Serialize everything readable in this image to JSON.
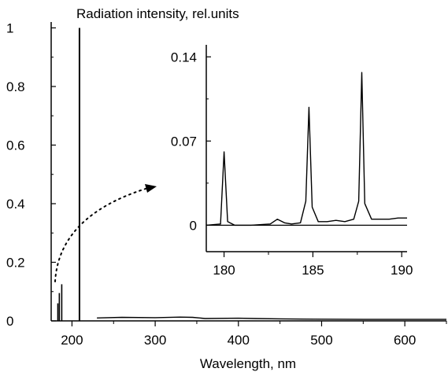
{
  "chart_data": [
    {
      "type": "line",
      "title": "Radiation intensity, rel.units",
      "xlabel": "Wavelength, nm",
      "ylabel": "",
      "xlim": [
        175,
        650
      ],
      "ylim": [
        0,
        1.02
      ],
      "xticks": [
        200,
        300,
        400,
        500,
        600
      ],
      "yticks": [
        0,
        0.2,
        0.4,
        0.6,
        0.8,
        1
      ],
      "series": [
        {
          "values": [
            [
              183,
              0.06
            ],
            [
              184.8,
              0.095
            ],
            [
              187.7,
              0.125
            ],
            [
              209,
              1.0
            ],
            [
              230,
              0.01
            ],
            [
              260,
              0.012
            ],
            [
              300,
              0.011
            ],
            [
              330,
              0.013
            ],
            [
              345,
              0.012
            ],
            [
              360,
              0.008
            ],
            [
              400,
              0.009
            ],
            [
              420,
              0.008
            ],
            [
              450,
              0.007
            ],
            [
              490,
              0.006
            ],
            [
              550,
              0.005
            ],
            [
              600,
              0.005
            ],
            [
              650,
              0.005
            ]
          ]
        }
      ],
      "grid": false
    },
    {
      "type": "line",
      "inset": true,
      "xlim": [
        179,
        190.3
      ],
      "ylim": [
        -0.022,
        0.15
      ],
      "xticks": [
        180,
        185,
        190
      ],
      "yticks": [
        0,
        0.07,
        0.14
      ],
      "series": [
        {
          "values": [
            [
              179.0,
              0.0
            ],
            [
              179.8,
              0.001
            ],
            [
              180.0,
              0.061
            ],
            [
              180.2,
              0.003
            ],
            [
              180.6,
              0.0
            ],
            [
              181.5,
              0.0
            ],
            [
              182.6,
              0.001
            ],
            [
              183.0,
              0.005
            ],
            [
              183.4,
              0.002
            ],
            [
              183.8,
              0.001
            ],
            [
              184.3,
              0.002
            ],
            [
              184.6,
              0.02
            ],
            [
              184.78,
              0.098
            ],
            [
              184.96,
              0.015
            ],
            [
              185.3,
              0.003
            ],
            [
              185.8,
              0.003
            ],
            [
              186.3,
              0.004
            ],
            [
              186.8,
              0.003
            ],
            [
              187.3,
              0.005
            ],
            [
              187.58,
              0.02
            ],
            [
              187.75,
              0.127
            ],
            [
              187.92,
              0.018
            ],
            [
              188.3,
              0.005
            ],
            [
              188.8,
              0.005
            ],
            [
              189.3,
              0.005
            ],
            [
              189.8,
              0.006
            ],
            [
              190.3,
              0.006
            ]
          ]
        }
      ],
      "grid": false
    }
  ]
}
